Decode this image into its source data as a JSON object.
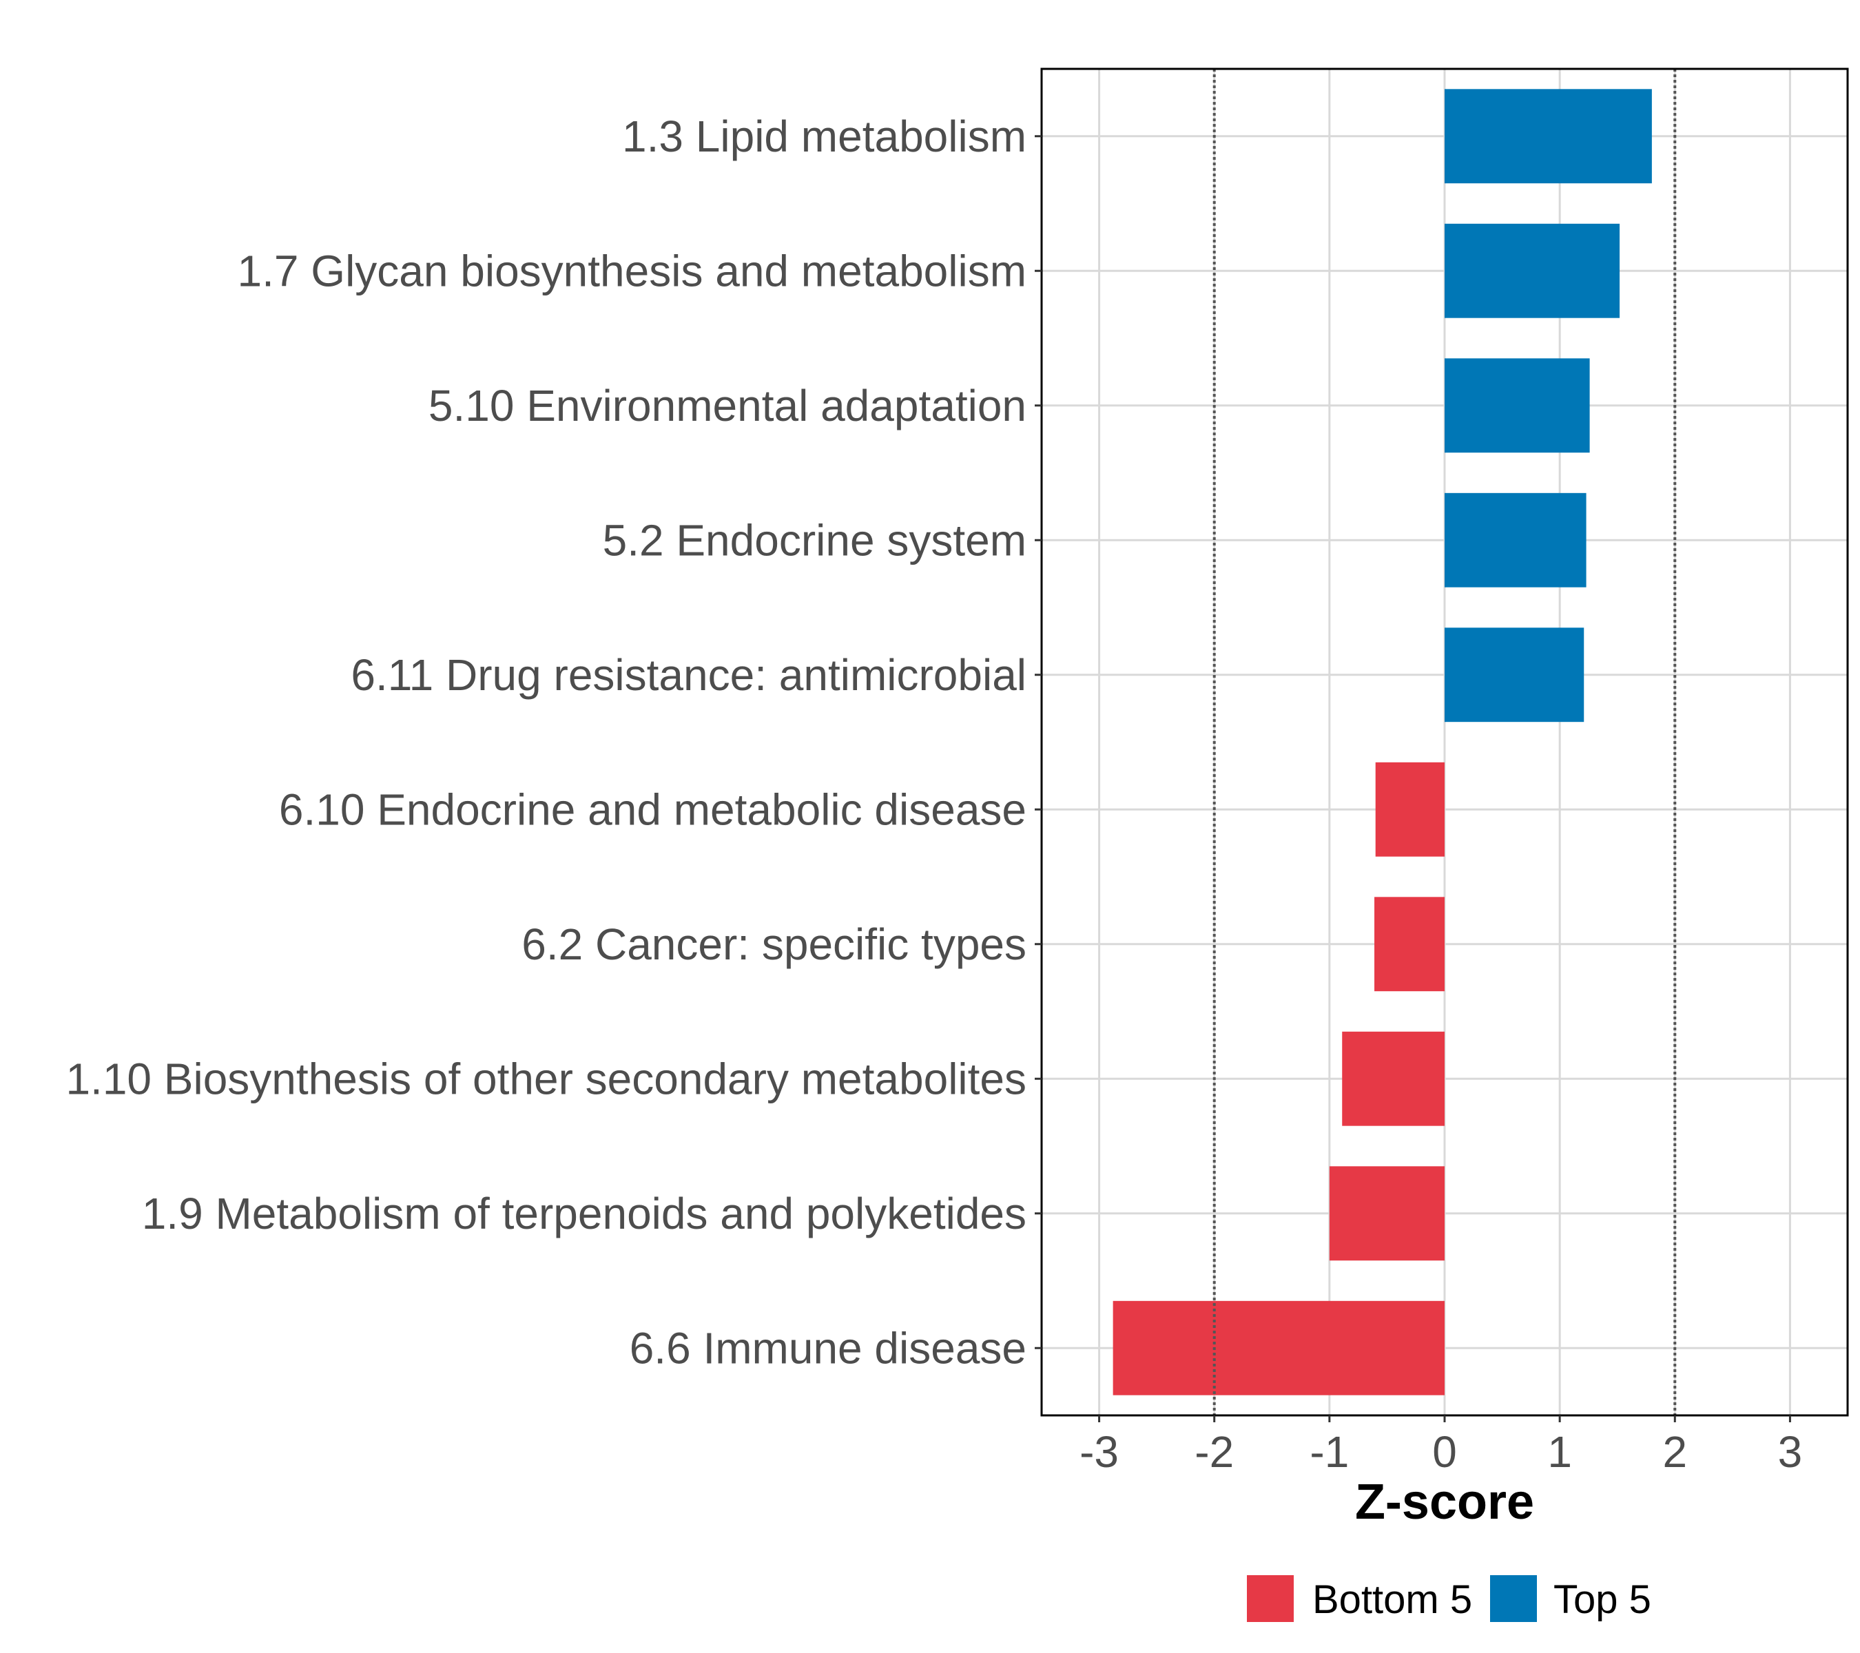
{
  "chart_data": {
    "type": "bar",
    "orientation": "horizontal",
    "title": "",
    "xlabel": "Z-score",
    "ylabel": "",
    "xlim": [
      -3.5,
      3.5
    ],
    "xticks": [
      -3,
      -2,
      -1,
      0,
      1,
      2,
      3
    ],
    "xtick_labels": [
      "-3",
      "-2",
      "-1",
      "0",
      "1",
      "2",
      "3"
    ],
    "reference_lines": [
      -2,
      2
    ],
    "grid": true,
    "legend_position": "bottom",
    "categories": [
      "1.3 Lipid metabolism",
      "1.7 Glycan biosynthesis and metabolism",
      "5.10 Environmental adaptation",
      "5.2 Endocrine system",
      "6.11 Drug resistance: antimicrobial",
      "6.10 Endocrine and metabolic disease",
      "6.2 Cancer: specific types",
      "1.10 Biosynthesis of other secondary metabolites",
      "1.9 Metabolism of terpenoids and polyketides",
      "6.6 Immune disease"
    ],
    "values": [
      1.8,
      1.52,
      1.26,
      1.23,
      1.21,
      -0.6,
      -0.61,
      -0.89,
      -1.0,
      -2.88
    ],
    "groups": [
      "Top 5",
      "Top 5",
      "Top 5",
      "Top 5",
      "Top 5",
      "Bottom 5",
      "Bottom 5",
      "Bottom 5",
      "Bottom 5",
      "Bottom 5"
    ],
    "legend": [
      {
        "name": "Bottom 5",
        "color": "#e63946"
      },
      {
        "name": "Top 5",
        "color": "#0077b6"
      }
    ]
  }
}
